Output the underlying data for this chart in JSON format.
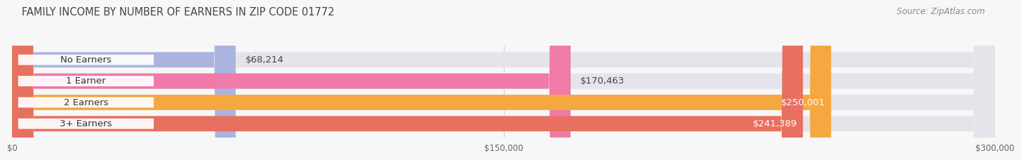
{
  "title": "FAMILY INCOME BY NUMBER OF EARNERS IN ZIP CODE 01772",
  "source": "Source: ZipAtlas.com",
  "categories": [
    "No Earners",
    "1 Earner",
    "2 Earners",
    "3+ Earners"
  ],
  "values": [
    68214,
    170463,
    250001,
    241389
  ],
  "bar_colors": [
    "#aab4df",
    "#f07aaa",
    "#f5a840",
    "#e87060"
  ],
  "bar_bg_color": "#e4e4ea",
  "label_colors": [
    "#555555",
    "#555555",
    "#ffffff",
    "#ffffff"
  ],
  "value_labels": [
    "$68,214",
    "$170,463",
    "$250,001",
    "$241,389"
  ],
  "xmax": 300000,
  "xtick_labels": [
    "$0",
    "$150,000",
    "$300,000"
  ],
  "background_color": "#f7f7f7",
  "title_fontsize": 10.5,
  "source_fontsize": 8.5,
  "label_fontsize": 9.5,
  "value_fontsize": 9.5
}
